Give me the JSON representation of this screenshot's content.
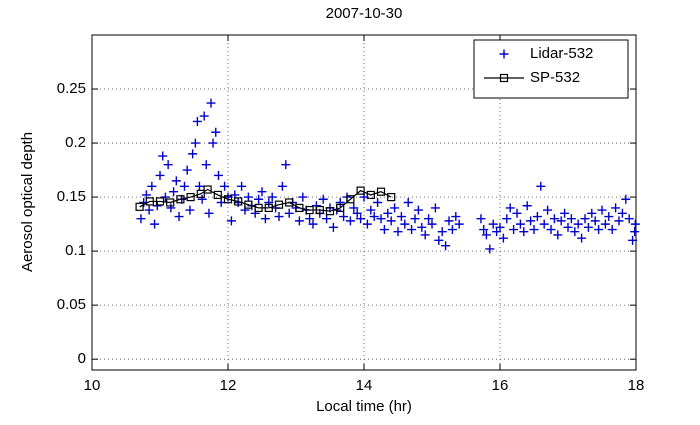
{
  "chart_data": {
    "type": "scatter",
    "title": "2007-10-30",
    "xlabel": "Local time (hr)",
    "ylabel": "Aerosol optical depth",
    "xlim": [
      10,
      18
    ],
    "xticks": [
      10,
      12,
      14,
      16,
      18
    ],
    "ylim": [
      -0.01,
      0.3
    ],
    "yticks": [
      0,
      0.05,
      0.1,
      0.15,
      0.2,
      0.25
    ],
    "grid": true,
    "legend": "upper right",
    "series": [
      {
        "name": "Lidar-532",
        "color": "#0000cc",
        "marker": "plus",
        "line": false,
        "x": [
          10.72,
          10.76,
          10.8,
          10.84,
          10.88,
          10.92,
          10.96,
          11.0,
          11.04,
          11.08,
          11.12,
          11.16,
          11.2,
          11.24,
          11.28,
          11.32,
          11.36,
          11.4,
          11.44,
          11.48,
          11.52,
          11.55,
          11.58,
          11.62,
          11.65,
          11.68,
          11.72,
          11.75,
          11.78,
          11.82,
          11.86,
          11.9,
          11.95,
          12.0,
          12.05,
          12.1,
          12.15,
          12.2,
          12.25,
          12.3,
          12.35,
          12.4,
          12.45,
          12.5,
          12.55,
          12.6,
          12.65,
          12.7,
          12.75,
          12.8,
          12.85,
          12.9,
          12.95,
          13.0,
          13.05,
          13.1,
          13.15,
          13.2,
          13.25,
          13.3,
          13.35,
          13.4,
          13.45,
          13.5,
          13.55,
          13.6,
          13.65,
          13.7,
          13.75,
          13.8,
          13.85,
          13.9,
          13.95,
          14.0,
          14.05,
          14.1,
          14.15,
          14.2,
          14.25,
          14.3,
          14.35,
          14.4,
          14.45,
          14.5,
          14.55,
          14.6,
          14.65,
          14.7,
          14.75,
          14.8,
          14.85,
          14.9,
          14.95,
          15.0,
          15.05,
          15.1,
          15.15,
          15.2,
          15.25,
          15.3,
          15.35,
          15.4,
          15.72,
          15.76,
          15.8,
          15.85,
          15.9,
          15.95,
          16.0,
          16.05,
          16.1,
          16.15,
          16.2,
          16.25,
          16.3,
          16.35,
          16.4,
          16.45,
          16.5,
          16.55,
          16.6,
          16.65,
          16.7,
          16.75,
          16.8,
          16.85,
          16.9,
          16.95,
          17.0,
          17.05,
          17.1,
          17.15,
          17.2,
          17.25,
          17.3,
          17.35,
          17.4,
          17.45,
          17.5,
          17.55,
          17.6,
          17.65,
          17.7,
          17.75,
          17.8,
          17.85,
          17.9,
          17.95,
          17.98,
          17.99
        ],
        "values": [
          0.13,
          0.145,
          0.152,
          0.138,
          0.16,
          0.125,
          0.142,
          0.17,
          0.188,
          0.15,
          0.18,
          0.14,
          0.155,
          0.165,
          0.132,
          0.148,
          0.16,
          0.175,
          0.138,
          0.19,
          0.2,
          0.22,
          0.16,
          0.148,
          0.225,
          0.18,
          0.135,
          0.237,
          0.2,
          0.21,
          0.17,
          0.145,
          0.16,
          0.15,
          0.128,
          0.152,
          0.145,
          0.16,
          0.138,
          0.15,
          0.142,
          0.135,
          0.148,
          0.155,
          0.13,
          0.145,
          0.15,
          0.14,
          0.132,
          0.16,
          0.18,
          0.135,
          0.145,
          0.14,
          0.128,
          0.15,
          0.138,
          0.13,
          0.125,
          0.142,
          0.135,
          0.148,
          0.13,
          0.14,
          0.122,
          0.138,
          0.145,
          0.132,
          0.15,
          0.128,
          0.14,
          0.135,
          0.13,
          0.15,
          0.125,
          0.138,
          0.132,
          0.145,
          0.13,
          0.12,
          0.135,
          0.128,
          0.14,
          0.118,
          0.132,
          0.125,
          0.145,
          0.12,
          0.13,
          0.138,
          0.122,
          0.115,
          0.13,
          0.125,
          0.14,
          0.11,
          0.118,
          0.105,
          0.128,
          0.12,
          0.132,
          0.125,
          0.13,
          0.12,
          0.115,
          0.102,
          0.125,
          0.118,
          0.122,
          0.112,
          0.13,
          0.14,
          0.12,
          0.135,
          0.125,
          0.118,
          0.142,
          0.128,
          0.12,
          0.132,
          0.16,
          0.125,
          0.138,
          0.12,
          0.13,
          0.115,
          0.128,
          0.135,
          0.122,
          0.13,
          0.118,
          0.125,
          0.112,
          0.13,
          0.122,
          0.135,
          0.128,
          0.12,
          0.138,
          0.125,
          0.132,
          0.12,
          0.14,
          0.128,
          0.135,
          0.148,
          0.13,
          0.11,
          0.118,
          0.125
        ]
      },
      {
        "name": "SP-532",
        "color": "#000000",
        "marker": "square",
        "line": true,
        "x": [
          10.7,
          10.85,
          11.0,
          11.15,
          11.3,
          11.45,
          11.6,
          11.7,
          11.85,
          12.0,
          12.15,
          12.3,
          12.45,
          12.6,
          12.75,
          12.9,
          13.05,
          13.2,
          13.35,
          13.5,
          13.65,
          13.8,
          13.95,
          14.1,
          14.25,
          14.4
        ],
        "values": [
          0.141,
          0.146,
          0.146,
          0.145,
          0.148,
          0.15,
          0.153,
          0.157,
          0.152,
          0.148,
          0.146,
          0.143,
          0.14,
          0.14,
          0.143,
          0.145,
          0.14,
          0.138,
          0.138,
          0.137,
          0.14,
          0.148,
          0.156,
          0.152,
          0.155,
          0.15
        ]
      }
    ]
  }
}
